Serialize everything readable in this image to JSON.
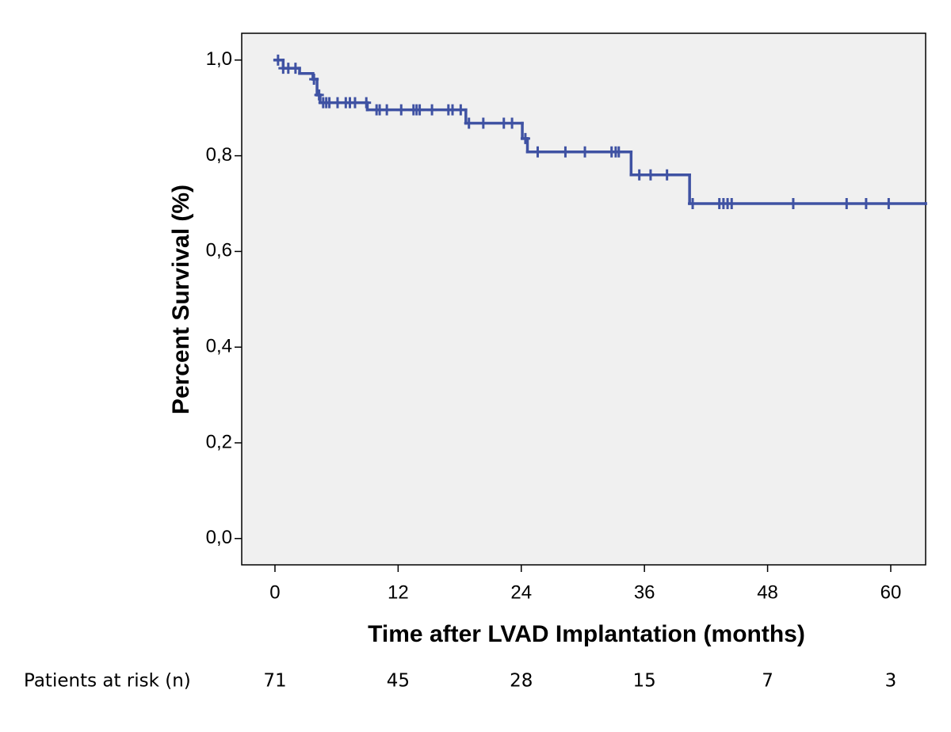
{
  "chart_data": {
    "type": "kaplan-meier",
    "y_label": "Percent Survival (%)",
    "x_label": "Time after LVAD Implantation (months)",
    "xlim": [
      -3.24,
      63.4
    ],
    "ylim": [
      -0.055,
      1.056
    ],
    "xticks": [
      0,
      12,
      24,
      36,
      48,
      60
    ],
    "yticks": [
      {
        "value": 0.0,
        "label": "0,0"
      },
      {
        "value": 0.2,
        "label": "0,2"
      },
      {
        "value": 0.4,
        "label": "0,4"
      },
      {
        "value": 0.6,
        "label": "0,6"
      },
      {
        "value": 0.8,
        "label": "0,8"
      },
      {
        "value": 1.0,
        "label": "1,0"
      }
    ],
    "color": "#3f52a3",
    "plot_background": "#f0f0f0",
    "survival": {
      "x": [
        0,
        0.8,
        2.4,
        3.7,
        4.1,
        4.4,
        9.0,
        18.6,
        24.1,
        24.6,
        34.7,
        40.4,
        63.4
      ],
      "y": [
        1.0,
        0.983,
        0.972,
        0.96,
        0.927,
        0.911,
        0.896,
        0.868,
        0.836,
        0.808,
        0.76,
        0.7,
        0.7
      ]
    },
    "censored": {
      "x": [
        0.3,
        0.8,
        1.3,
        2.0,
        3.8,
        4.3,
        4.7,
        5.0,
        5.3,
        6.1,
        6.9,
        7.3,
        7.8,
        8.9,
        9.9,
        10.2,
        10.9,
        12.3,
        13.5,
        13.8,
        14.1,
        15.3,
        16.9,
        17.3,
        18.1,
        18.9,
        20.3,
        22.3,
        23.1,
        24.4,
        25.6,
        28.3,
        30.2,
        32.8,
        33.2,
        33.5,
        35.5,
        36.6,
        38.2,
        40.7,
        43.3,
        43.7,
        44.1,
        44.5,
        50.5,
        55.7,
        57.6,
        59.8
      ],
      "y": [
        1.0,
        0.983,
        0.983,
        0.983,
        0.96,
        0.927,
        0.911,
        0.911,
        0.911,
        0.911,
        0.911,
        0.911,
        0.911,
        0.911,
        0.896,
        0.896,
        0.896,
        0.896,
        0.896,
        0.896,
        0.896,
        0.896,
        0.896,
        0.896,
        0.896,
        0.868,
        0.868,
        0.868,
        0.868,
        0.836,
        0.808,
        0.808,
        0.808,
        0.808,
        0.808,
        0.808,
        0.76,
        0.76,
        0.76,
        0.7,
        0.7,
        0.7,
        0.7,
        0.7,
        0.7,
        0.7,
        0.7,
        0.7
      ]
    },
    "risk_label": "Patients at risk (n)",
    "risk_values": [
      71,
      45,
      28,
      15,
      7,
      3
    ]
  }
}
